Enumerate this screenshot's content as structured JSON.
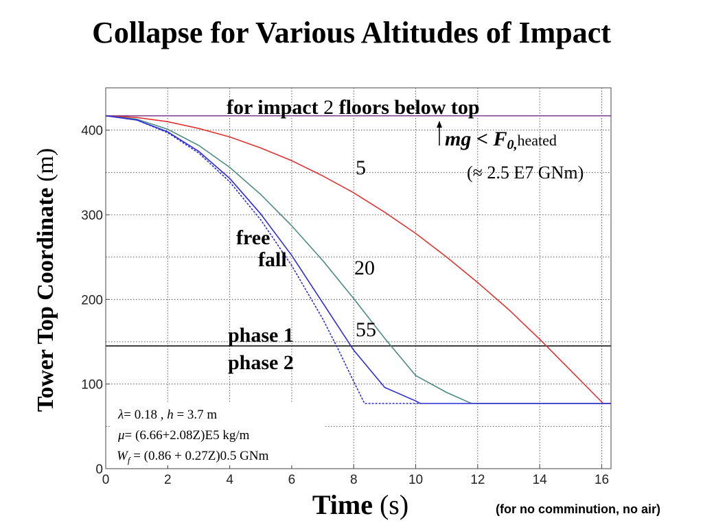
{
  "title": "Collapse for Various Altitudes of Impact",
  "footnote": "(for no comminution, no air)",
  "chart_data": {
    "type": "line",
    "title": "Collapse for Various Altitudes of Impact",
    "xlabel_bold": "Time",
    "xlabel_unit": " (s)",
    "ylabel_bold": "Tower Top Coordinate",
    "ylabel_unit": " (m)",
    "xlim": [
      0,
      16.3
    ],
    "ylim": [
      0,
      450
    ],
    "xticks": [
      0,
      2,
      4,
      6,
      8,
      10,
      12,
      14,
      16
    ],
    "yticks": [
      0,
      100,
      200,
      300,
      400
    ],
    "ygrid": [
      0,
      50,
      100,
      150,
      200,
      250,
      300,
      350,
      400,
      450
    ],
    "grid": true,
    "reference_lines": [
      {
        "name": "top",
        "y": 417,
        "color": "#7b3a8c"
      },
      {
        "name": "phase boundary",
        "y": 145,
        "color": "#000000"
      }
    ],
    "series": [
      {
        "label": "5",
        "color": "#e03030",
        "dash": false,
        "x": [
          0,
          1,
          2,
          3,
          4,
          5,
          6,
          7,
          8,
          9,
          10,
          11,
          12,
          13,
          14,
          15,
          16.05,
          16.3
        ],
        "y": [
          417,
          415,
          410,
          402,
          392,
          379,
          364,
          346,
          326,
          303,
          278,
          250,
          220,
          188,
          153,
          116,
          77,
          77
        ]
      },
      {
        "label": "20",
        "color": "#4a8a80",
        "dash": false,
        "x": [
          0,
          1,
          2,
          3,
          4,
          5,
          6,
          7,
          8,
          9,
          10,
          11,
          11.8,
          16.3
        ],
        "y": [
          417,
          413,
          401,
          382,
          356,
          324,
          287,
          246,
          201,
          154,
          110,
          90,
          77,
          77
        ]
      },
      {
        "label": "55",
        "color": "#2a2ad8",
        "dash": false,
        "x": [
          0,
          1,
          2,
          3,
          4,
          5,
          6,
          7,
          8,
          9,
          10,
          10.15,
          16.3
        ],
        "y": [
          417,
          412,
          398,
          375,
          343,
          301,
          252,
          196,
          140,
          96,
          80,
          77,
          77
        ]
      },
      {
        "label": "free fall",
        "color": "#2a2ad8",
        "dash": true,
        "x": [
          0,
          1,
          2,
          3,
          4,
          5,
          6,
          7,
          7.5,
          8.0,
          8.35,
          10.15
        ],
        "y": [
          417,
          412,
          397,
          373,
          339,
          294,
          240,
          177,
          141,
          103,
          77,
          77
        ]
      }
    ]
  },
  "annotations": {
    "impact_title_a": "for impact",
    "impact_title_num": "2",
    "impact_title_b": "floors below top",
    "mg_a": "mg",
    "mg_b": " < ",
    "mg_f": "F",
    "mg_sub": "0,",
    "mg_heated": "heated",
    "approx": "(≈ 2.5 E7 GNm)",
    "label_5": "5",
    "label_20": "20",
    "label_55": "55",
    "free": "free",
    "fall": "fall",
    "phase1": "phase 1",
    "phase2": "phase 2",
    "lambda_sym": "λ",
    "lambda_val": "= 0.18 ,  ",
    "h_sym": "h",
    "h_val": " = 3.7 m",
    "mu_sym": "μ",
    "mu_val": "= (6.66+2.08Z)E5 kg/m",
    "wf_sym": "W",
    "wf_sub": "f",
    "wf_val": " = (0.86 + 0.27Z)0.5 GNm"
  }
}
